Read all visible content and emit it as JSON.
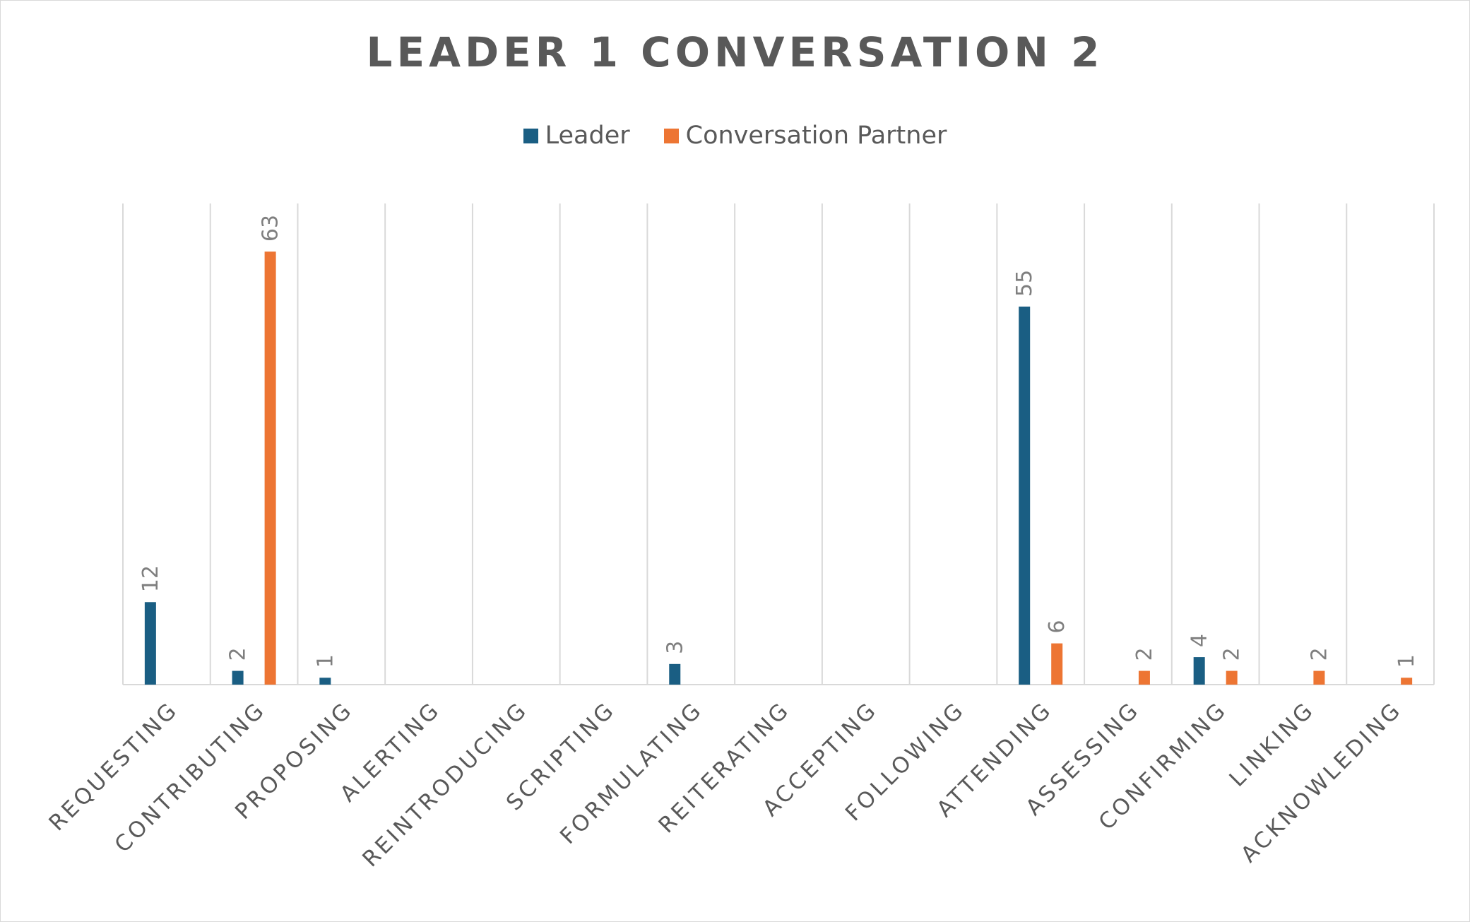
{
  "chart_data": {
    "type": "bar",
    "title": "LEADER 1 CONVERSATION 2",
    "xlabel": "",
    "ylabel": "",
    "ylim": [
      0,
      70
    ],
    "grid": "vertical category separators",
    "legend": "top-center",
    "categories": [
      "REQUESTING",
      "CONTRIBUTING",
      "PROPOSING",
      "ALERTING",
      "REINTRODUCING",
      "SCRIPTING",
      "FORMULATING",
      "REITERATING",
      "ACCEPTING",
      "FOLLOWING",
      "ATTENDING",
      "ASSESSING",
      "CONFIRMING",
      "LINKING",
      "ACKNOWLEDING"
    ],
    "series": [
      {
        "name": "Leader",
        "color": "#1a5e83",
        "values": [
          12,
          2,
          1,
          null,
          null,
          null,
          3,
          null,
          null,
          null,
          55,
          null,
          4,
          null,
          null
        ]
      },
      {
        "name": "Conversation Partner",
        "color": "#ed7533",
        "values": [
          null,
          63,
          null,
          null,
          null,
          null,
          null,
          null,
          null,
          null,
          6,
          2,
          2,
          2,
          1
        ]
      }
    ]
  }
}
